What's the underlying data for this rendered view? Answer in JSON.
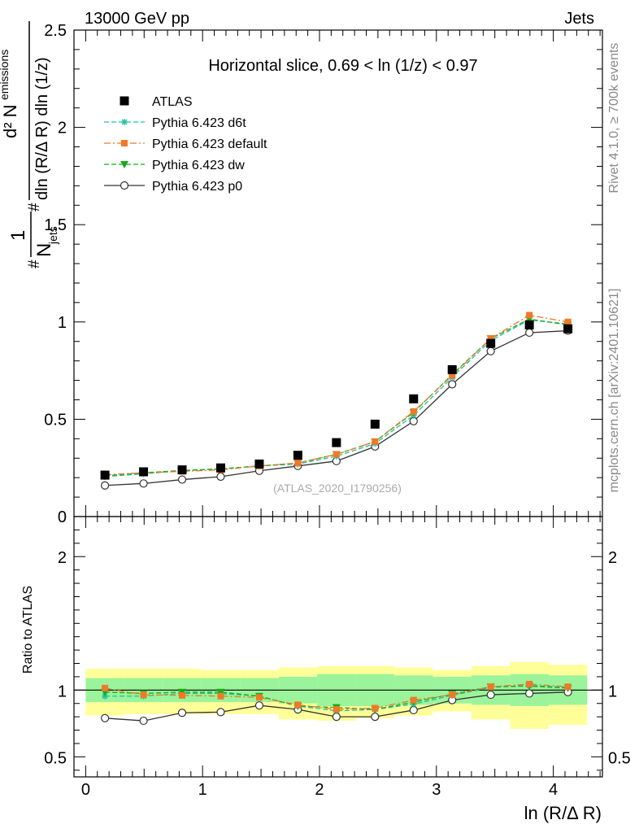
{
  "header": {
    "left": "13000 GeV pp",
    "right": "Jets"
  },
  "side_labels": {
    "rivet": "Rivet 4.1.0, ≥ 700k events",
    "mcplots": "mcplots.cern.ch [arXiv:2401.10621]"
  },
  "watermark": "(ATLAS_2020_I1790256)",
  "chart_data": [
    {
      "type": "scatter",
      "panel": "main",
      "title": "Horizontal slice, 0.69 < ln (1/z) < 0.97",
      "xlabel": "ln (R/Δ R)",
      "ylabel": "#frac{1}{N_{jets}} #frac{d² N_{emissions}}{dln (R/Δ R) dln (1/z)}",
      "ylabel_parts": {
        "frac1_num": "1",
        "frac1_den": "N",
        "frac1_den_sub": "jets",
        "frac2_num": "d² N",
        "frac2_num_sub": "emissions",
        "frac2_den": "dln (R/Δ R) dln (1/z)",
        "hash": "#"
      },
      "xlim": [
        -0.1,
        4.42
      ],
      "ylim": [
        0,
        2.5
      ],
      "y_ticks": [
        0,
        0.5,
        1,
        1.5,
        2,
        2.5
      ],
      "y_tick_labels": [
        "0",
        "0.5",
        "1",
        "1.5",
        "2",
        "2.5"
      ],
      "x": [
        0.165,
        0.495,
        0.825,
        1.155,
        1.485,
        1.815,
        2.145,
        2.475,
        2.805,
        3.135,
        3.465,
        3.795,
        4.125
      ],
      "series": [
        {
          "name": "ATLAS",
          "color": "#000000",
          "style": "markers",
          "values": [
            0.213,
            0.23,
            0.24,
            0.25,
            0.27,
            0.315,
            0.38,
            0.475,
            0.605,
            0.755,
            0.89,
            0.985,
            0.965
          ]
        },
        {
          "name": "Pythia 6.423 d6t",
          "color": "#20c0a0",
          "style": "dashed",
          "values": [
            0.205,
            0.22,
            0.235,
            0.245,
            0.26,
            0.27,
            0.31,
            0.375,
            0.52,
            0.715,
            0.905,
            1.01,
            0.99
          ]
        },
        {
          "name": "Pythia 6.423 default",
          "color": "#f07828",
          "style": "dashdot",
          "values": [
            0.215,
            0.225,
            0.232,
            0.24,
            0.26,
            0.275,
            0.32,
            0.385,
            0.54,
            0.725,
            0.915,
            1.035,
            1.0
          ]
        },
        {
          "name": "Pythia 6.423 dw",
          "color": "#1aaa1a",
          "style": "dashed",
          "values": [
            0.21,
            0.225,
            0.237,
            0.245,
            0.26,
            0.275,
            0.32,
            0.385,
            0.535,
            0.73,
            0.915,
            1.015,
            0.985
          ]
        },
        {
          "name": "Pythia 6.423 p0",
          "color": "#333333",
          "style": "solid",
          "values": [
            0.16,
            0.17,
            0.19,
            0.205,
            0.235,
            0.26,
            0.285,
            0.36,
            0.49,
            0.68,
            0.85,
            0.945,
            0.955
          ]
        }
      ]
    },
    {
      "type": "line",
      "panel": "ratio",
      "ylabel": "Ratio to ATLAS",
      "xlabel": "ln (R/Δ R)",
      "xlim": [
        -0.1,
        4.42
      ],
      "ylim": [
        0.35,
        2.3
      ],
      "x_ticks": [
        0,
        1,
        2,
        3,
        4
      ],
      "x_tick_labels": [
        "0",
        "1",
        "2",
        "3",
        "4"
      ],
      "y_ticks": [
        0.5,
        1,
        2
      ],
      "y_tick_labels": [
        "0.5",
        "1",
        "2"
      ],
      "x": [
        0.165,
        0.495,
        0.825,
        1.155,
        1.485,
        1.815,
        2.145,
        2.475,
        2.805,
        3.135,
        3.465,
        3.795,
        4.125
      ],
      "bins": [
        [
          0,
          0.33
        ],
        [
          0.33,
          0.66
        ],
        [
          0.66,
          0.99
        ],
        [
          0.99,
          1.32
        ],
        [
          1.32,
          1.65
        ],
        [
          1.65,
          1.98
        ],
        [
          1.98,
          2.31
        ],
        [
          2.31,
          2.64
        ],
        [
          2.64,
          2.97
        ],
        [
          2.97,
          3.3
        ],
        [
          3.3,
          3.63
        ],
        [
          3.63,
          3.96
        ],
        [
          3.96,
          4.29
        ]
      ],
      "band_stat": {
        "color": "#9bf49b",
        "lo": [
          0.91,
          0.91,
          0.91,
          0.91,
          0.91,
          0.9,
          0.88,
          0.88,
          0.89,
          0.9,
          0.89,
          0.88,
          0.89
        ],
        "hi": [
          1.09,
          1.09,
          1.09,
          1.09,
          1.09,
          1.1,
          1.12,
          1.12,
          1.11,
          1.1,
          1.11,
          1.12,
          1.11
        ]
      },
      "band_total": {
        "color": "#ffff99",
        "lo": [
          0.81,
          0.82,
          0.82,
          0.82,
          0.82,
          0.78,
          0.77,
          0.79,
          0.81,
          0.84,
          0.78,
          0.71,
          0.74
        ],
        "hi": [
          1.16,
          1.16,
          1.16,
          1.15,
          1.15,
          1.17,
          1.18,
          1.18,
          1.17,
          1.15,
          1.18,
          1.21,
          1.19
        ]
      },
      "series": [
        {
          "name": "Pythia 6.423 d6t",
          "color": "#20c0a0",
          "values": [
            0.955,
            0.955,
            0.975,
            0.975,
            0.955,
            0.88,
            0.845,
            0.855,
            0.895,
            0.96,
            1.02,
            1.035,
            1.02
          ]
        },
        {
          "name": "Pythia 6.423 default",
          "color": "#f07828",
          "values": [
            1.015,
            0.965,
            0.96,
            0.955,
            0.945,
            0.89,
            0.855,
            0.865,
            0.925,
            0.965,
            1.025,
            1.045,
            1.025
          ]
        },
        {
          "name": "Pythia 6.423 dw",
          "color": "#1aaa1a",
          "values": [
            0.985,
            0.975,
            0.985,
            0.985,
            0.955,
            0.88,
            0.87,
            0.855,
            0.91,
            0.97,
            1.025,
            1.03,
            1.015
          ]
        },
        {
          "name": "Pythia 6.423 p0",
          "color": "#333333",
          "values": [
            0.79,
            0.77,
            0.83,
            0.835,
            0.885,
            0.855,
            0.8,
            0.8,
            0.85,
            0.925,
            0.965,
            0.975,
            0.985
          ]
        }
      ]
    }
  ]
}
